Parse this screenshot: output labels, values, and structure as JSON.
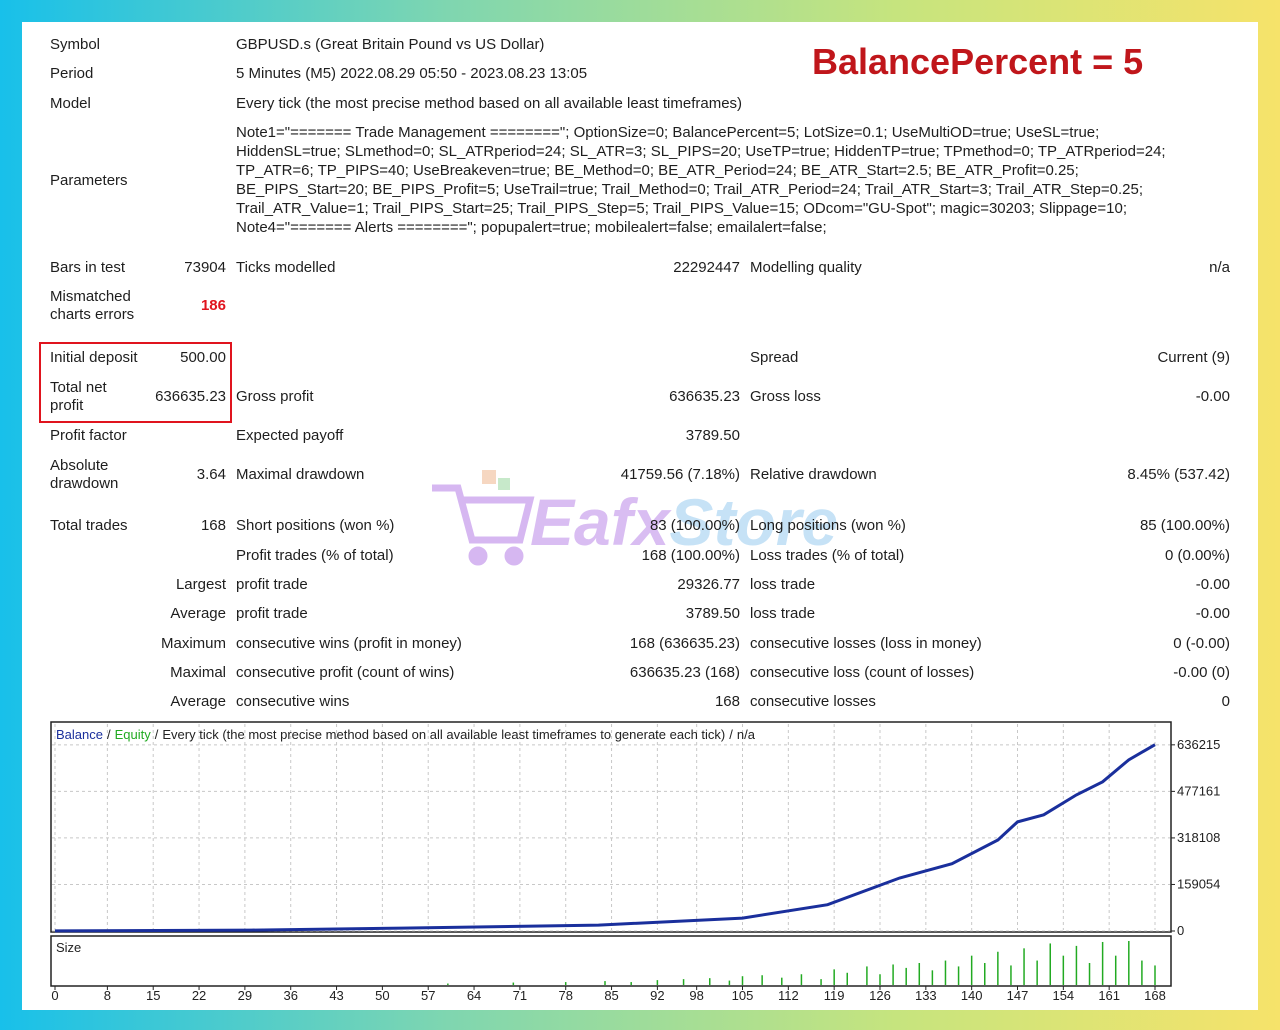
{
  "badge": "BalancePercent = 5",
  "header": [
    {
      "label": "Symbol",
      "value": "GBPUSD.s (Great Britain Pound vs US Dollar)"
    },
    {
      "label": "Period",
      "value": "5 Minutes (M5) 2022.08.29 05:50 - 2023.08.23 13:05"
    },
    {
      "label": "Model",
      "value": "Every tick (the most precise method based on all available least timeframes)"
    }
  ],
  "parameters": {
    "label": "Parameters",
    "lines": [
      "Note1=\"======= Trade Management ========\"; OptionSize=0; BalancePercent=5; LotSize=0.1; UseMultiOD=true; UseSL=true;",
      "HiddenSL=true; SLmethod=0; SL_ATRperiod=24; SL_ATR=3; SL_PIPS=20; UseTP=true; HiddenTP=true; TPmethod=0; TP_ATRperiod=24;",
      "TP_ATR=6; TP_PIPS=40; UseBreakeven=true; BE_Method=0; BE_ATR_Period=24; BE_ATR_Start=2.5; BE_ATR_Profit=0.25;",
      "BE_PIPS_Start=20; BE_PIPS_Profit=5; UseTrail=true; Trail_Method=0; Trail_ATR_Period=24; Trail_ATR_Start=3; Trail_ATR_Step=0.25;",
      "Trail_ATR_Value=1; Trail_PIPS_Start=25; Trail_PIPS_Step=5; Trail_PIPS_Value=15; ODcom=\"GU-Spot\"; magic=30203; Slippage=10;",
      "Note4=\"======= Alerts ========\"; popupalert=true; mobilealert=false; emailalert=false;"
    ]
  },
  "stats": [
    [
      "Bars in test",
      "73904",
      "Ticks modelled",
      "22292447",
      "Modelling quality",
      "n/a"
    ],
    [
      "Mismatched charts errors",
      "186",
      null,
      null,
      null,
      null
    ],
    [
      "Initial deposit",
      "500.00",
      null,
      null,
      "Spread",
      "Current (9)"
    ],
    [
      "Total net profit",
      "636635.23",
      "Gross profit",
      "636635.23",
      "Gross loss",
      "-0.00"
    ],
    [
      "Profit factor",
      null,
      "Expected payoff",
      "3789.50",
      null,
      null
    ],
    [
      "Absolute drawdown",
      "3.64",
      "Maximal drawdown",
      "41759.56 (7.18%)",
      "Relative drawdown",
      "8.45% (537.42)"
    ],
    [
      "Total trades",
      "168",
      "Short positions (won %)",
      "83 (100.00%)",
      "Long positions (won %)",
      "85 (100.00%)"
    ],
    [
      null,
      null,
      "Profit trades (% of total)",
      "168 (100.00%)",
      "Loss trades (% of total)",
      "0 (0.00%)"
    ],
    [
      null,
      "Largest",
      "profit trade",
      "29326.77",
      "loss trade",
      "-0.00"
    ],
    [
      null,
      "Average",
      "profit trade",
      "3789.50",
      "loss trade",
      "-0.00"
    ],
    [
      null,
      "Maximum",
      "consecutive wins (profit in money)",
      "168 (636635.23)",
      "consecutive losses (loss in money)",
      "0 (-0.00)"
    ],
    [
      null,
      "Maximal",
      "consecutive profit (count of wins)",
      "636635.23 (168)",
      "consecutive loss (count of losses)",
      "-0.00 (0)"
    ],
    [
      null,
      "Average",
      "consecutive wins",
      "168",
      "consecutive losses",
      "0"
    ]
  ],
  "watermark": {
    "brand": "Eafx",
    "suffix": "Store"
  },
  "chart_data": {
    "type": "line",
    "separator": "/",
    "note": "Every tick (the most precise method based on all available least timeframes to generate each tick)",
    "quality": "n/a",
    "equity_label": "Equity",
    "equity_color": "#22aa22",
    "x": [
      0,
      30,
      53,
      83,
      105,
      118,
      129,
      137,
      144,
      147,
      151,
      156,
      160,
      164,
      168
    ],
    "series": [
      {
        "name": "Balance",
        "color": "#1a2f9c",
        "values": [
          500,
          3000,
          10000,
          20000,
          44000,
          90000,
          181000,
          230000,
          311000,
          373000,
          397000,
          465000,
          510000,
          585000,
          636635
        ]
      }
    ],
    "xlim": [
      0,
      168
    ],
    "xticks": [
      0,
      8,
      15,
      22,
      29,
      36,
      43,
      50,
      57,
      64,
      71,
      78,
      85,
      92,
      98,
      105,
      112,
      119,
      126,
      133,
      140,
      147,
      154,
      161,
      168
    ],
    "ylim": [
      0,
      704000
    ],
    "yticks": [
      0,
      159054,
      318108,
      477161,
      636215
    ],
    "grid": true,
    "size": {
      "label": "Size",
      "color": "#22aa22",
      "x": [
        60,
        70,
        78,
        84,
        88,
        92,
        96,
        100,
        103,
        105,
        108,
        111,
        114,
        117,
        119,
        121,
        124,
        126,
        128,
        130,
        132,
        134,
        136,
        138,
        140,
        142,
        144,
        146,
        148,
        150,
        152,
        154,
        156,
        158,
        160,
        162,
        164,
        166,
        168
      ],
      "values": [
        0.3,
        0.5,
        0.6,
        0.8,
        0.6,
        1,
        1.2,
        1.4,
        0.9,
        1.8,
        2,
        1.5,
        2.2,
        1.2,
        3.2,
        2.5,
        3.8,
        2.2,
        4.2,
        3.5,
        4.5,
        3,
        5,
        3.8,
        6,
        4.5,
        6.8,
        4,
        7.5,
        5,
        8.5,
        6,
        8,
        4.5,
        8.8,
        6,
        9,
        5,
        4
      ]
    }
  }
}
